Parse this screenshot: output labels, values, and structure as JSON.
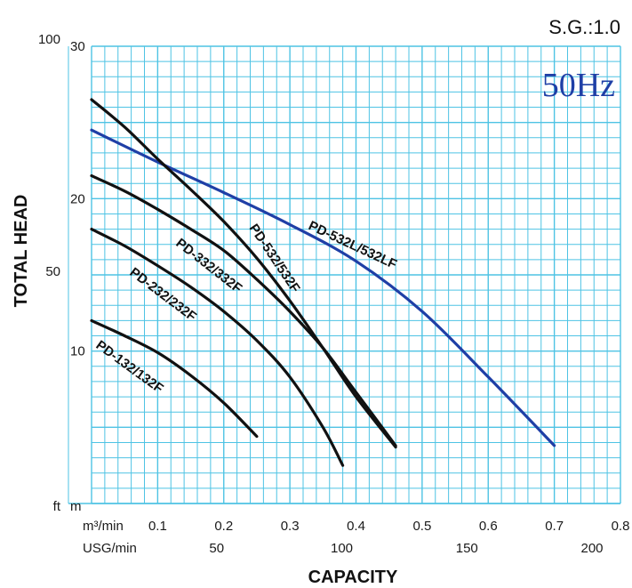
{
  "chart_data": {
    "type": "line",
    "sg_label": "S.G.:1.0",
    "frequency_label": "50Hz",
    "ylabel": "TOTAL HEAD",
    "xlabel": "CAPACITY",
    "x_unit_primary": "m³/min",
    "x_unit_secondary": "USG/min",
    "y_unit_left": "ft",
    "y_unit_right": "m",
    "xlim": [
      0.0,
      0.8
    ],
    "ylim": [
      0,
      30
    ],
    "x_ticks": [
      {
        "value": 0.1,
        "label": "0.1"
      },
      {
        "value": 0.2,
        "label": "0.2"
      },
      {
        "value": 0.3,
        "label": "0.3"
      },
      {
        "value": 0.4,
        "label": "0.4"
      },
      {
        "value": 0.5,
        "label": "0.5"
      },
      {
        "value": 0.6,
        "label": "0.6"
      },
      {
        "value": 0.7,
        "label": "0.7"
      },
      {
        "value": 0.8,
        "label": "0.8"
      }
    ],
    "x2_ticks": [
      {
        "value": 50,
        "label": "50"
      },
      {
        "value": 100,
        "label": "100"
      },
      {
        "value": 150,
        "label": "150"
      },
      {
        "value": 200,
        "label": "200"
      }
    ],
    "y_ticks_m": [
      {
        "value": 10,
        "label": "10"
      },
      {
        "value": 20,
        "label": "20"
      },
      {
        "value": 30,
        "label": "30"
      }
    ],
    "y_ticks_ft": [
      {
        "value": 50,
        "label": "50"
      },
      {
        "value": 100,
        "label": "100"
      }
    ],
    "grid": true,
    "series": [
      {
        "name": "PD-532L/532LF",
        "color": "#1f3fa6",
        "x": [
          0.0,
          0.1,
          0.2,
          0.3,
          0.4,
          0.5,
          0.6,
          0.7
        ],
        "y": [
          24.5,
          22.4,
          20.4,
          18.3,
          15.9,
          12.6,
          8.3,
          3.8
        ]
      },
      {
        "name": "PD-532/532F",
        "color": "#111111",
        "x": [
          0.0,
          0.05,
          0.1,
          0.15,
          0.2,
          0.25,
          0.3,
          0.35,
          0.4,
          0.46
        ],
        "y": [
          26.5,
          24.7,
          22.6,
          20.6,
          18.5,
          16.1,
          13.3,
          10.2,
          7.0,
          3.7
        ]
      },
      {
        "name": "PD-332/332F",
        "color": "#111111",
        "x": [
          0.0,
          0.05,
          0.1,
          0.15,
          0.2,
          0.25,
          0.3,
          0.35,
          0.4,
          0.46
        ],
        "y": [
          21.5,
          20.5,
          19.3,
          18.0,
          16.6,
          14.7,
          12.6,
          10.2,
          7.3,
          3.8
        ]
      },
      {
        "name": "PD-232/232F",
        "color": "#111111",
        "x": [
          0.0,
          0.05,
          0.1,
          0.15,
          0.2,
          0.25,
          0.3,
          0.35,
          0.38
        ],
        "y": [
          18.0,
          16.9,
          15.6,
          14.2,
          12.6,
          10.7,
          8.3,
          5.0,
          2.5
        ]
      },
      {
        "name": "PD-132/132F",
        "color": "#111111",
        "x": [
          0.0,
          0.05,
          0.1,
          0.15,
          0.2,
          0.25
        ],
        "y": [
          12.0,
          11.0,
          9.9,
          8.4,
          6.6,
          4.4
        ]
      }
    ]
  }
}
